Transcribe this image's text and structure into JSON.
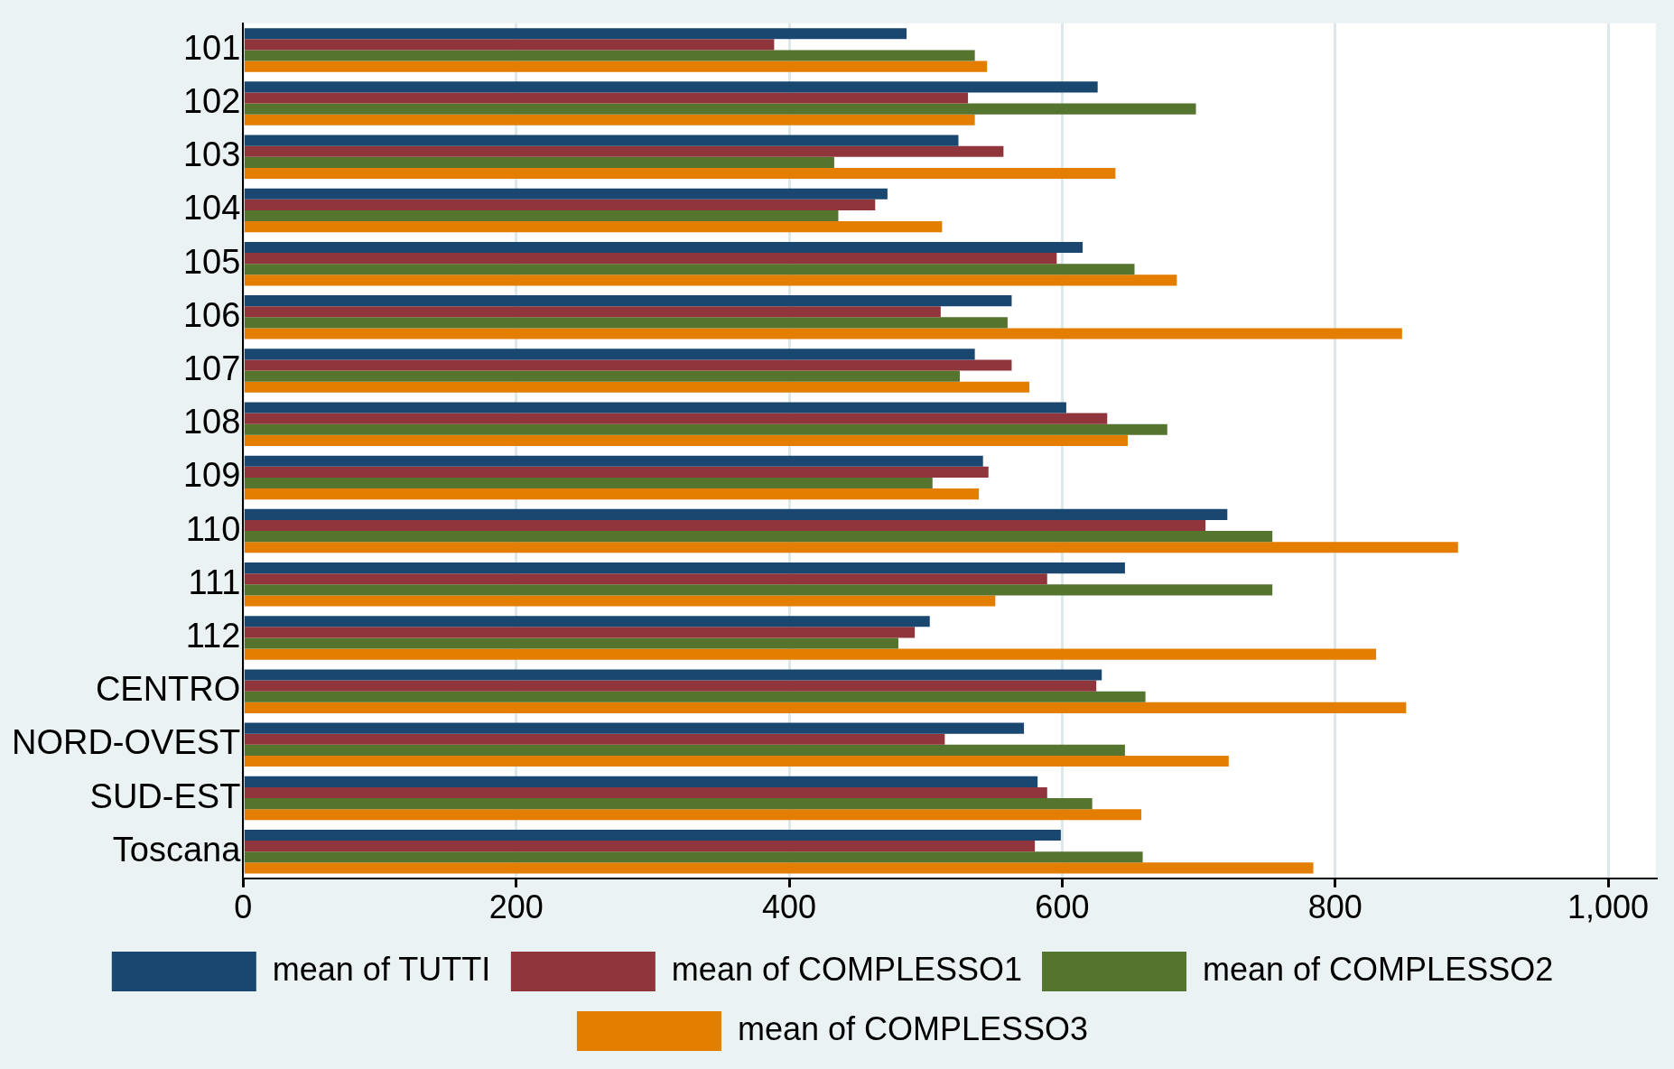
{
  "chart_data": {
    "type": "bar",
    "orientation": "horizontal",
    "categories": [
      "101",
      "102",
      "103",
      "104",
      "105",
      "106",
      "107",
      "108",
      "109",
      "110",
      "111",
      "112",
      "CENTRO",
      "NORD-OVEST",
      "SUD-EST",
      "Toscana"
    ],
    "series": [
      {
        "name": "mean of TUTTI",
        "color": "#1a476f",
        "values": [
          486,
          626,
          524,
          472,
          615,
          563,
          536,
          603,
          542,
          721,
          646,
          503,
          629,
          572,
          582,
          599
        ]
      },
      {
        "name": "mean of COMPLESSO1",
        "color": "#90353b",
        "values": [
          389,
          531,
          557,
          463,
          596,
          511,
          563,
          633,
          546,
          705,
          589,
          492,
          625,
          514,
          589,
          580
        ]
      },
      {
        "name": "mean of COMPLESSO2",
        "color": "#55752f",
        "values": [
          536,
          698,
          433,
          436,
          653,
          560,
          525,
          677,
          505,
          754,
          754,
          480,
          661,
          646,
          622,
          659
        ]
      },
      {
        "name": "mean of COMPLESSO3",
        "color": "#e37e00",
        "values": [
          545,
          536,
          639,
          512,
          684,
          849,
          576,
          648,
          539,
          890,
          551,
          830,
          852,
          722,
          658,
          784
        ]
      }
    ],
    "xlim": [
      0,
      1035
    ],
    "xticks": [
      0,
      200,
      400,
      600,
      800,
      {
        "value": 1000,
        "label": "1,000"
      }
    ],
    "grid": "x",
    "legend": "bottom"
  }
}
